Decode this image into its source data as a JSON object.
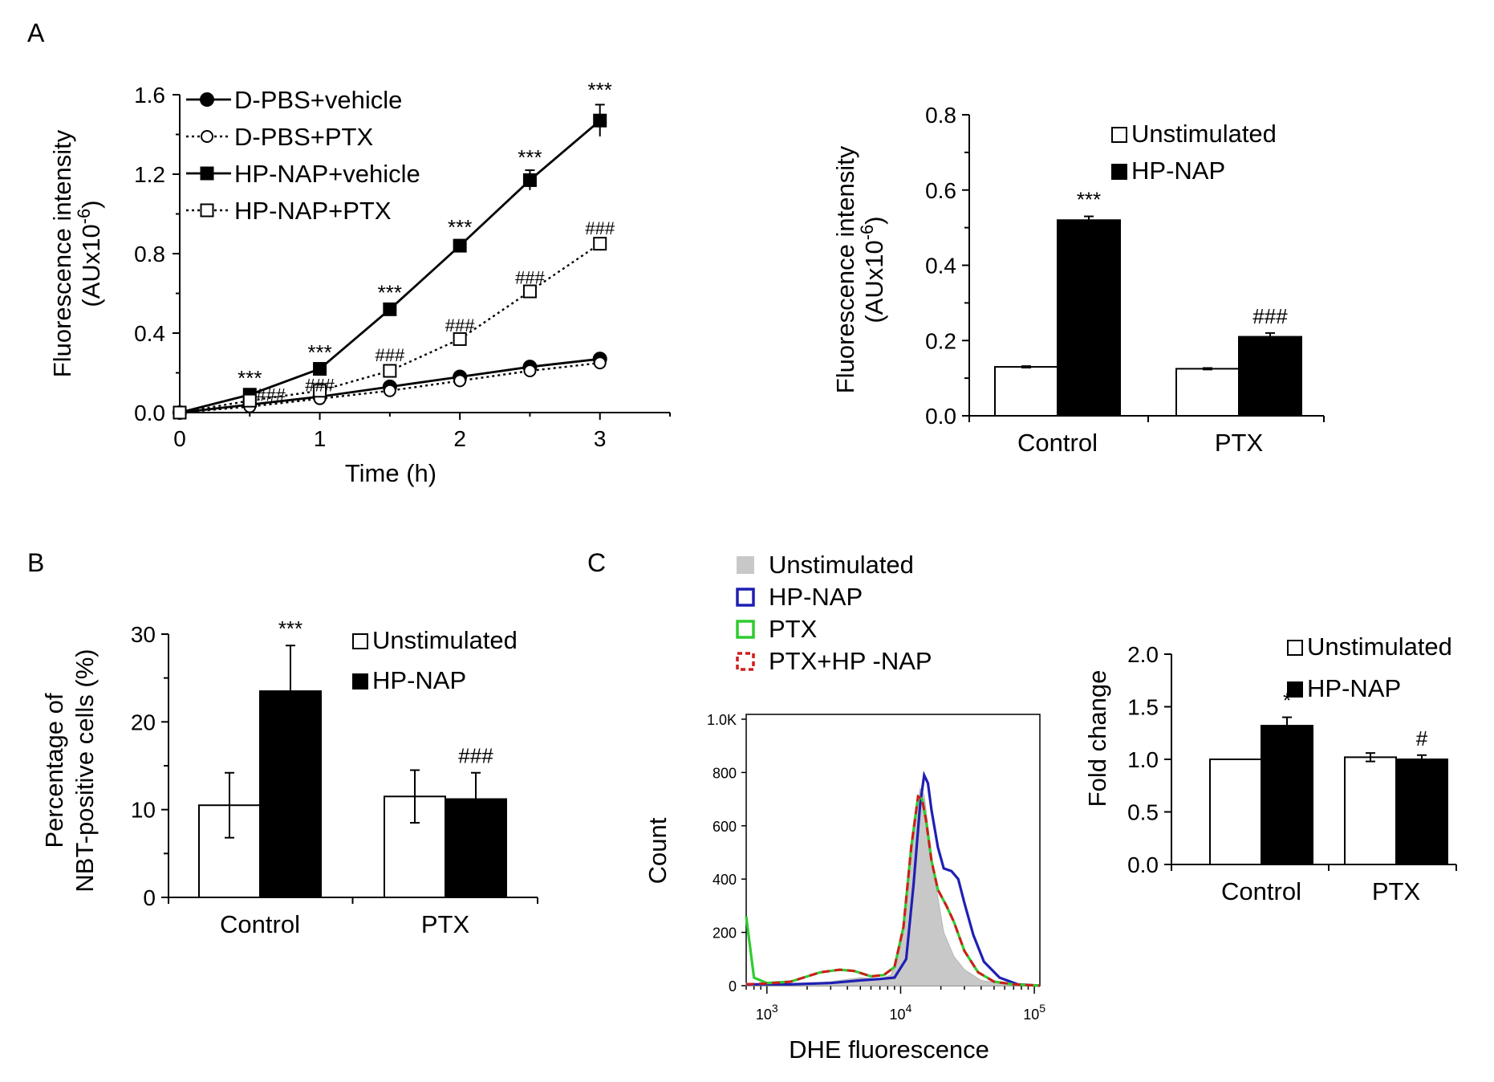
{
  "panels": {
    "a": "A",
    "b": "B",
    "c": "C"
  },
  "chart_data": [
    {
      "id": "A-line",
      "type": "line",
      "xlabel": "Time (h)",
      "ylabel_line1": "Fluorescence intensity",
      "ylabel_line2": "(AUx10",
      "ylabel_exp": "-6",
      "ylabel_close": ")",
      "xlim": [
        0,
        3.5
      ],
      "ylim": [
        0,
        1.6
      ],
      "xticks": [
        "0",
        "1",
        "2",
        "3"
      ],
      "yticks": [
        "0.0",
        "0.4",
        "0.8",
        "1.2",
        "1.6"
      ],
      "x": [
        0,
        0.5,
        1,
        1.5,
        2,
        2.5,
        3
      ],
      "series": [
        {
          "name": "D-PBS+vehicle",
          "values": [
            0,
            0.04,
            0.08,
            0.13,
            0.18,
            0.23,
            0.27
          ],
          "marker": "circle-filled",
          "line": "solid"
        },
        {
          "name": "D-PBS+PTX",
          "values": [
            0,
            0.03,
            0.07,
            0.11,
            0.16,
            0.21,
            0.25
          ],
          "marker": "circle-open",
          "line": "dotted"
        },
        {
          "name": "HP-NAP+vehicle",
          "values": [
            0,
            0.09,
            0.22,
            0.52,
            0.84,
            1.17,
            1.47
          ],
          "errors": [
            0,
            0.01,
            0.02,
            0.02,
            0.03,
            0.05,
            0.08
          ],
          "marker": "square-filled",
          "line": "solid"
        },
        {
          "name": "HP-NAP+PTX",
          "values": [
            0,
            0.06,
            0.11,
            0.21,
            0.37,
            0.61,
            0.85
          ],
          "marker": "square-open",
          "line": "dotted"
        }
      ],
      "annotations": [
        {
          "x": 0.5,
          "y": 0.17,
          "text": "***"
        },
        {
          "x": 1.0,
          "y": 0.3,
          "text": "***"
        },
        {
          "x": 1.5,
          "y": 0.6,
          "text": "***"
        },
        {
          "x": 2.0,
          "y": 0.93,
          "text": "***"
        },
        {
          "x": 2.5,
          "y": 1.28,
          "text": "***"
        },
        {
          "x": 3.0,
          "y": 1.62,
          "text": "***"
        },
        {
          "x": 0.65,
          "y": 0.09,
          "text": "###"
        },
        {
          "x": 1.0,
          "y": 0.14,
          "text": "###"
        },
        {
          "x": 1.5,
          "y": 0.29,
          "text": "###"
        },
        {
          "x": 2.0,
          "y": 0.44,
          "text": "###"
        },
        {
          "x": 2.5,
          "y": 0.68,
          "text": "###"
        },
        {
          "x": 3.0,
          "y": 0.93,
          "text": "###"
        }
      ]
    },
    {
      "id": "A-bar",
      "type": "bar",
      "categories": [
        "Control",
        "PTX"
      ],
      "ylabel_line1": "Fluorescence intensity",
      "ylabel_line2": "(AUx10",
      "ylabel_exp": "-6",
      "ylabel_close": ")",
      "ylim": [
        0,
        0.8
      ],
      "yticks": [
        "0.0",
        "0.2",
        "0.4",
        "0.6",
        "0.8"
      ],
      "series": [
        {
          "name": "Unstimulated",
          "values": [
            0.13,
            0.125
          ],
          "errors": [
            0.002,
            0.002
          ],
          "color": "#ffffff"
        },
        {
          "name": "HP-NAP",
          "values": [
            0.52,
            0.21
          ],
          "errors": [
            0.01,
            0.01
          ],
          "color": "#000000"
        }
      ],
      "annotations": [
        {
          "category": "Control",
          "series": "HP-NAP",
          "text": "***"
        },
        {
          "category": "PTX",
          "series": "HP-NAP",
          "text": "###"
        }
      ]
    },
    {
      "id": "B-bar",
      "type": "bar",
      "categories": [
        "Control",
        "PTX"
      ],
      "ylabel_line1": "Percentage of",
      "ylabel_line2": "NBT-positive cells (%)",
      "ylim": [
        0,
        30
      ],
      "yticks": [
        "0",
        "10",
        "20",
        "30"
      ],
      "series": [
        {
          "name": "Unstimulated",
          "values": [
            10.5,
            11.5
          ],
          "errors": [
            3.7,
            3.0
          ],
          "color": "#ffffff"
        },
        {
          "name": "HP-NAP",
          "values": [
            23.5,
            11.2
          ],
          "errors": [
            5.2,
            3.0
          ],
          "color": "#000000"
        }
      ],
      "annotations": [
        {
          "category": "Control",
          "series": "HP-NAP",
          "text": "***"
        },
        {
          "category": "PTX",
          "series": "HP-NAP",
          "text": "###"
        }
      ]
    },
    {
      "id": "C-histogram",
      "type": "line",
      "xlabel": "DHE fluorescence",
      "ylabel": "Count",
      "xscale": "log",
      "xlim": [
        700,
        110000
      ],
      "ylim": [
        0,
        1000
      ],
      "yticks": [
        "0",
        "200",
        "400",
        "600",
        "800",
        "1.0K"
      ],
      "xticks": [
        {
          "base": "10",
          "exp": "3"
        },
        {
          "base": "10",
          "exp": "4"
        },
        {
          "base": "10",
          "exp": "5"
        }
      ],
      "series": [
        {
          "name": "Unstimulated",
          "color": "#c8c8c8",
          "style": "filled",
          "x": [
            700,
            900,
            1500,
            3000,
            5000,
            7000,
            8500,
            10000,
            11500,
            13000,
            14000,
            15000,
            16000,
            18000,
            21000,
            25000,
            30000,
            40000,
            60000,
            110000
          ],
          "y": [
            10,
            5,
            5,
            15,
            30,
            25,
            40,
            150,
            430,
            650,
            740,
            715,
            600,
            400,
            200,
            110,
            60,
            20,
            5,
            0
          ]
        },
        {
          "name": "HP-NAP",
          "color": "#1f1fb4",
          "style": "line",
          "x": [
            700,
            1500,
            3000,
            5000,
            7000,
            9000,
            11000,
            12500,
            14000,
            15000,
            16000,
            17000,
            19000,
            21000,
            24000,
            27000,
            30000,
            35000,
            42000,
            55000,
            75000,
            110000
          ],
          "y": [
            5,
            5,
            10,
            20,
            25,
            30,
            100,
            380,
            680,
            790,
            760,
            660,
            520,
            440,
            430,
            400,
            310,
            190,
            90,
            30,
            5,
            0
          ]
        },
        {
          "name": "PTX",
          "color": "#2fcc2f",
          "style": "line",
          "x": [
            700,
            800,
            1000,
            1500,
            2500,
            3500,
            4500,
            6000,
            7500,
            9000,
            10500,
            12000,
            13500,
            14500,
            15500,
            17000,
            19000,
            22000,
            25000,
            30000,
            38000,
            50000,
            70000,
            110000
          ],
          "y": [
            260,
            30,
            10,
            15,
            50,
            60,
            55,
            35,
            40,
            70,
            220,
            520,
            710,
            700,
            620,
            470,
            360,
            300,
            240,
            130,
            50,
            15,
            5,
            0
          ]
        },
        {
          "name": "PTX+HP -NAP",
          "color": "#d01c1c",
          "style": "dashed",
          "x": [
            700,
            1000,
            1500,
            2500,
            3500,
            4500,
            6000,
            7500,
            9000,
            10500,
            12000,
            13500,
            14500,
            15500,
            17000,
            19000,
            22000,
            25000,
            30000,
            38000,
            50000,
            70000,
            110000
          ],
          "y": [
            5,
            8,
            15,
            50,
            60,
            55,
            35,
            40,
            70,
            220,
            520,
            710,
            700,
            620,
            470,
            360,
            300,
            240,
            130,
            50,
            15,
            5,
            0
          ]
        }
      ]
    },
    {
      "id": "C-bar",
      "type": "bar",
      "categories": [
        "Control",
        "PTX"
      ],
      "ylabel": "Fold change",
      "ylim": [
        0,
        2.0
      ],
      "yticks": [
        "0.0",
        "0.5",
        "1.0",
        "1.5",
        "2.0"
      ],
      "series": [
        {
          "name": "Unstimulated",
          "values": [
            1.0,
            1.02
          ],
          "errors": [
            0,
            0.04
          ],
          "color": "#ffffff"
        },
        {
          "name": "HP-NAP",
          "values": [
            1.32,
            1.0
          ],
          "errors": [
            0.08,
            0.04
          ],
          "color": "#000000"
        }
      ],
      "annotations": [
        {
          "category": "Control",
          "series": "HP-NAP",
          "text": "*"
        },
        {
          "category": "PTX",
          "series": "HP-NAP",
          "text": "#"
        }
      ]
    }
  ]
}
